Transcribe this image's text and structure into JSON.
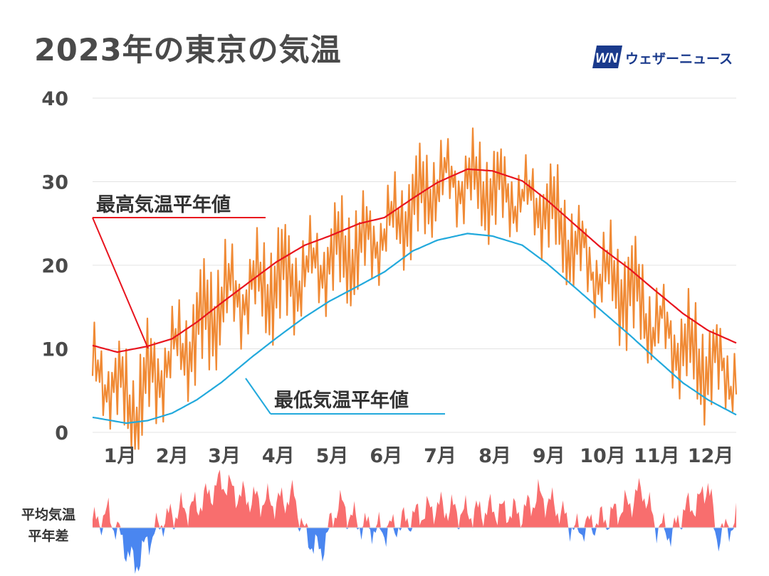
{
  "title": "2023年の東京の気温",
  "brand": {
    "mark": "WN",
    "name": "ウェザーニュース",
    "color": "#1a3a8c"
  },
  "colors": {
    "daily": "#f08a35",
    "max_normal": "#e8141e",
    "min_normal": "#22a9dc",
    "anom_pos": "#f86e6e",
    "anom_neg": "#4a86f0",
    "grid": "#e3e3e3",
    "text": "#4a4a4a"
  },
  "chart_data": {
    "type": "line",
    "title": "2023年の東京の気温",
    "ylim": [
      0,
      40
    ],
    "yticks": [
      "0",
      "10",
      "20",
      "30",
      "40"
    ],
    "grid": true,
    "x_axis": {
      "start": "2023-01-01",
      "end": "2023-12-31"
    },
    "x_tick_labels": [
      "1月",
      "2月",
      "3月",
      "4月",
      "5月",
      "6月",
      "7月",
      "8月",
      "9月",
      "10月",
      "11月",
      "12月"
    ],
    "series": [
      {
        "name": "最高気温平年値",
        "label_position": "upper-left",
        "points": [
          [
            "2023-01-01",
            10.4
          ],
          [
            "2023-01-15",
            9.6
          ],
          [
            "2023-02-01",
            10.3
          ],
          [
            "2023-02-15",
            11.2
          ],
          [
            "2023-03-01",
            13.2
          ],
          [
            "2023-03-15",
            15.5
          ],
          [
            "2023-04-01",
            18.2
          ],
          [
            "2023-04-15",
            20.4
          ],
          [
            "2023-05-01",
            22.4
          ],
          [
            "2023-05-15",
            23.5
          ],
          [
            "2023-06-01",
            25.0
          ],
          [
            "2023-06-15",
            25.7
          ],
          [
            "2023-07-01",
            28.0
          ],
          [
            "2023-07-15",
            29.9
          ],
          [
            "2023-08-01",
            31.5
          ],
          [
            "2023-08-15",
            31.3
          ],
          [
            "2023-09-01",
            30.1
          ],
          [
            "2023-09-15",
            27.8
          ],
          [
            "2023-10-01",
            24.8
          ],
          [
            "2023-10-15",
            22.2
          ],
          [
            "2023-11-01",
            19.5
          ],
          [
            "2023-11-15",
            17.0
          ],
          [
            "2023-12-01",
            14.2
          ],
          [
            "2023-12-15",
            12.2
          ],
          [
            "2023-12-31",
            10.7
          ]
        ]
      },
      {
        "name": "最低気温平年値",
        "label_position": "middle",
        "points": [
          [
            "2023-01-01",
            1.8
          ],
          [
            "2023-01-20",
            1.1
          ],
          [
            "2023-02-01",
            1.4
          ],
          [
            "2023-02-15",
            2.3
          ],
          [
            "2023-03-01",
            3.9
          ],
          [
            "2023-03-15",
            6.0
          ],
          [
            "2023-04-01",
            9.0
          ],
          [
            "2023-04-15",
            11.3
          ],
          [
            "2023-05-01",
            13.8
          ],
          [
            "2023-05-15",
            15.7
          ],
          [
            "2023-06-01",
            17.6
          ],
          [
            "2023-06-15",
            19.2
          ],
          [
            "2023-07-01",
            21.7
          ],
          [
            "2023-07-15",
            23.0
          ],
          [
            "2023-08-01",
            23.8
          ],
          [
            "2023-08-15",
            23.5
          ],
          [
            "2023-09-01",
            22.4
          ],
          [
            "2023-09-15",
            20.2
          ],
          [
            "2023-10-01",
            17.3
          ],
          [
            "2023-10-15",
            14.7
          ],
          [
            "2023-11-01",
            11.6
          ],
          [
            "2023-11-15",
            8.9
          ],
          [
            "2023-12-01",
            5.9
          ],
          [
            "2023-12-15",
            3.9
          ],
          [
            "2023-12-31",
            2.1
          ]
        ]
      },
      {
        "name": "",
        "style": "daily-range-band",
        "points": [
          [
            "2023-01-01",
            7.0
          ],
          [
            "2023-01-10",
            6.5
          ],
          [
            "2023-01-20",
            4.0
          ],
          [
            "2023-01-25",
            2.0
          ],
          [
            "2023-02-01",
            6.0
          ],
          [
            "2023-02-15",
            9.0
          ],
          [
            "2023-03-01",
            12.0
          ],
          [
            "2023-03-15",
            16.0
          ],
          [
            "2023-04-01",
            17.0
          ],
          [
            "2023-04-15",
            18.0
          ],
          [
            "2023-05-01",
            19.0
          ],
          [
            "2023-05-15",
            21.0
          ],
          [
            "2023-06-01",
            22.0
          ],
          [
            "2023-06-15",
            24.0
          ],
          [
            "2023-07-01",
            27.0
          ],
          [
            "2023-07-15",
            30.0
          ],
          [
            "2023-08-01",
            30.0
          ],
          [
            "2023-08-15",
            29.0
          ],
          [
            "2023-09-01",
            28.0
          ],
          [
            "2023-09-15",
            27.0
          ],
          [
            "2023-10-01",
            22.0
          ],
          [
            "2023-10-15",
            19.0
          ],
          [
            "2023-11-01",
            17.0
          ],
          [
            "2023-11-15",
            13.0
          ],
          [
            "2023-12-01",
            10.0
          ],
          [
            "2023-12-15",
            8.0
          ],
          [
            "2023-12-31",
            7.0
          ]
        ],
        "amplitude": [
          [
            "2023-01-01",
            5.5
          ],
          [
            "2023-03-01",
            6.5
          ],
          [
            "2023-05-01",
            6.0
          ],
          [
            "2023-07-01",
            5.5
          ],
          [
            "2023-09-01",
            5.0
          ],
          [
            "2023-11-01",
            6.0
          ],
          [
            "2023-12-31",
            5.5
          ]
        ]
      }
    ],
    "anomaly": {
      "label": [
        "平均気温",
        "平年差"
      ],
      "points": [
        [
          "2023-01-01",
          0.5
        ],
        [
          "2023-01-10",
          2.0
        ],
        [
          "2023-01-20",
          -3.0
        ],
        [
          "2023-01-25",
          -5.5
        ],
        [
          "2023-02-01",
          -2.0
        ],
        [
          "2023-02-10",
          1.0
        ],
        [
          "2023-02-20",
          2.5
        ],
        [
          "2023-03-01",
          3.0
        ],
        [
          "2023-03-15",
          6.5
        ],
        [
          "2023-03-25",
          4.5
        ],
        [
          "2023-04-01",
          4.0
        ],
        [
          "2023-04-15",
          3.5
        ],
        [
          "2023-04-25",
          4.5
        ],
        [
          "2023-05-01",
          -1.0
        ],
        [
          "2023-05-10",
          -3.5
        ],
        [
          "2023-05-20",
          3.5
        ],
        [
          "2023-06-01",
          0.5
        ],
        [
          "2023-06-15",
          -0.5
        ],
        [
          "2023-07-01",
          1.5
        ],
        [
          "2023-07-15",
          3.0
        ],
        [
          "2023-08-01",
          2.0
        ],
        [
          "2023-08-15",
          2.5
        ],
        [
          "2023-09-01",
          2.0
        ],
        [
          "2023-09-10",
          4.5
        ],
        [
          "2023-09-20",
          3.0
        ],
        [
          "2023-10-01",
          -0.5
        ],
        [
          "2023-10-10",
          0.5
        ],
        [
          "2023-10-20",
          1.5
        ],
        [
          "2023-11-01",
          3.5
        ],
        [
          "2023-11-08",
          5.5
        ],
        [
          "2023-11-15",
          0.5
        ],
        [
          "2023-11-25",
          -1.0
        ],
        [
          "2023-12-01",
          2.5
        ],
        [
          "2023-12-10",
          3.5
        ],
        [
          "2023-12-15",
          6.5
        ],
        [
          "2023-12-20",
          -1.5
        ],
        [
          "2023-12-31",
          1.0
        ]
      ]
    }
  }
}
